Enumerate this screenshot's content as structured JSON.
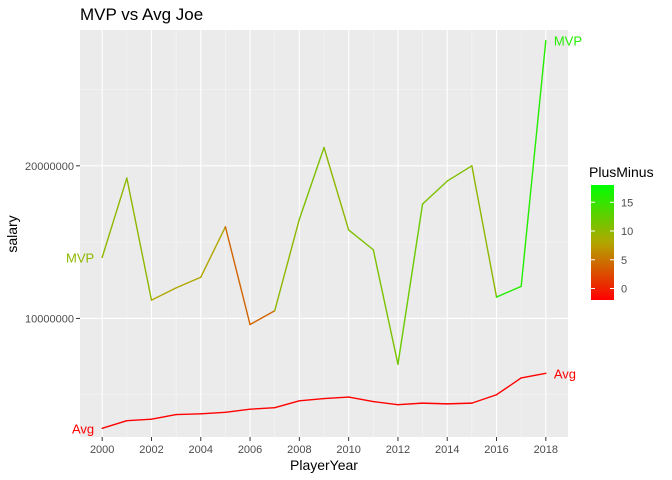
{
  "chart_data": {
    "type": "line",
    "title": "MVP vs Avg Joe",
    "xlabel": "PlayerYear",
    "ylabel": "salary",
    "xlim": [
      1999.1,
      2018.9
    ],
    "ylim": [
      2230000,
      28900000
    ],
    "x_ticks": [
      2000,
      2002,
      2004,
      2006,
      2008,
      2010,
      2012,
      2014,
      2016,
      2018
    ],
    "y_ticks": [
      10000000,
      20000000
    ],
    "y_tick_labels": [
      "10000000",
      "20000000"
    ],
    "grid": true,
    "x": [
      2000,
      2001,
      2002,
      2003,
      2004,
      2005,
      2006,
      2007,
      2008,
      2009,
      2010,
      2011,
      2012,
      2013,
      2014,
      2015,
      2016,
      2017,
      2018
    ],
    "series": [
      {
        "name": "MVP",
        "label": "MVP",
        "values": [
          14000000,
          19200000,
          11200000,
          12000000,
          12700000,
          16000000,
          9600000,
          10500000,
          16500000,
          21200000,
          15800000,
          14500000,
          7000000,
          17500000,
          19000000,
          20000000,
          11400000,
          12100000,
          28200000
        ],
        "plusminus": [
          10,
          10,
          8,
          8,
          8,
          4,
          4,
          10,
          11,
          10,
          11,
          11,
          12,
          11,
          11,
          10,
          16,
          16,
          18
        ]
      },
      {
        "name": "Avg",
        "label": "Avg",
        "values": [
          2800000,
          3300000,
          3400000,
          3700000,
          3750000,
          3850000,
          4050000,
          4150000,
          4600000,
          4750000,
          4850000,
          4550000,
          4350000,
          4450000,
          4400000,
          4450000,
          5000000,
          6100000,
          6400000
        ],
        "plusminus": [
          -2,
          -2,
          -2,
          -2,
          -2,
          -2,
          -2,
          -2,
          -2,
          -2,
          -2,
          -2,
          -2,
          -2,
          -2,
          -2,
          -2,
          -2,
          -2
        ]
      }
    ],
    "legend": {
      "title": "PlusMinus",
      "position": "right",
      "min": -2,
      "max": 18,
      "ticks": [
        0,
        5,
        10,
        15
      ],
      "colors": [
        "#ff0000",
        "#b2a600",
        "#00ff00"
      ]
    }
  }
}
